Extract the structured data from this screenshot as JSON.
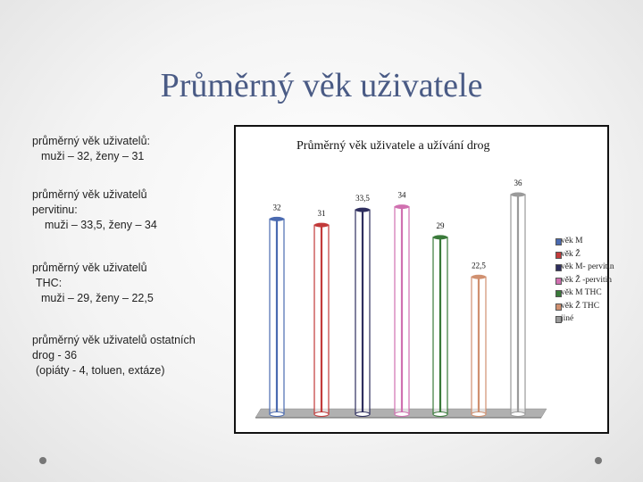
{
  "slide": {
    "title": "Průměrný věk uživatele"
  },
  "bullets": {
    "b1_line1": "průměrný věk uživatelů:",
    "b1_line2": "muži – 32, ženy – 31",
    "b2_line1": "průměrný věk  uživatelů",
    "b2_line2": "pervitinu:",
    "b2_line3": "muži – 33,5, ženy – 34",
    "b3_line1": "průměrný věk  uživatelů",
    "b3_line2": "THC:",
    "b3_line3": "muži – 29, ženy – 22,5",
    "b4_line1": "průměrný věk  uživatelů ostatních",
    "b4_line2": "drog - 36",
    "b4_line3": "(opiáty - 4, toluen,  extáze)"
  },
  "chart_data": {
    "type": "bar",
    "title": "Průměrný věk uživatele a užívání drog",
    "series": [
      {
        "name": "věk M",
        "value": 32,
        "label": "32",
        "color": "#4a6ab0"
      },
      {
        "name": "věk Ž",
        "value": 31,
        "label": "31",
        "color": "#c23a3a"
      },
      {
        "name": "věk M- pervitin",
        "value": 33.5,
        "label": "33,5",
        "color": "#2e2e5e"
      },
      {
        "name": "věk Ž -pervitin",
        "value": 34,
        "label": "34",
        "color": "#d070b0"
      },
      {
        "name": "věk M THC",
        "value": 29,
        "label": "29",
        "color": "#3a7a3a"
      },
      {
        "name": "věk Ž THC",
        "value": 22.5,
        "label": "22,5",
        "color": "#d09070"
      },
      {
        "name": "jiné",
        "value": 36,
        "label": "36",
        "color": "#9a9a9a"
      }
    ],
    "grid": false,
    "legend_position": "right"
  }
}
